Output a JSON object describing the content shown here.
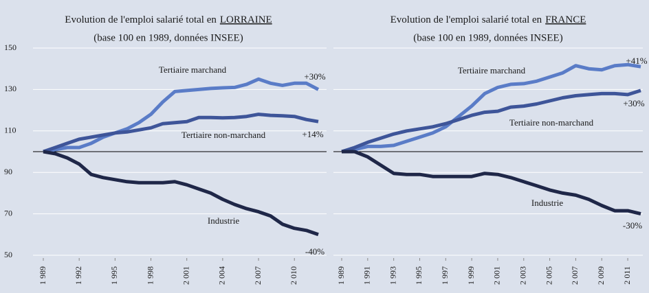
{
  "chart_data": [
    {
      "type": "line",
      "title": "Evolution de l'emploi salarié total en",
      "title_place": "LORRAINE",
      "subtitle": "(base 100 en 1989, données INSEE)",
      "x": [
        1989,
        1990,
        1991,
        1992,
        1993,
        1994,
        1995,
        1996,
        1997,
        1998,
        1999,
        2000,
        2001,
        2002,
        2003,
        2004,
        2005,
        2006,
        2007,
        2008,
        2009,
        2010,
        2011,
        2012
      ],
      "xlim": [
        1989,
        2012
      ],
      "xticks": [
        {
          "value": 1989,
          "label": "1 989"
        },
        {
          "value": 1992,
          "label": "1 992"
        },
        {
          "value": 1995,
          "label": "1 995"
        },
        {
          "value": 1998,
          "label": "1 998"
        },
        {
          "value": 2001,
          "label": "2 001"
        },
        {
          "value": 2004,
          "label": "2 004"
        },
        {
          "value": 2007,
          "label": "2 007"
        },
        {
          "value": 2010,
          "label": "2 010"
        }
      ],
      "ylim": [
        50,
        150
      ],
      "yticks": [
        50,
        70,
        90,
        110,
        130,
        150
      ],
      "grid": true,
      "baseline": 100,
      "series": [
        {
          "name": "Tertiaire marchand",
          "color": "#5a7cc7",
          "values": [
            100,
            101,
            102,
            102,
            104,
            107,
            109,
            111,
            114,
            118,
            124,
            129,
            129.5,
            130,
            130.5,
            130.8,
            131,
            132.5,
            135,
            133,
            132,
            133,
            133,
            130
          ]
        },
        {
          "name": "Tertiaire non-marchand",
          "color": "#3e5599",
          "values": [
            100,
            102,
            104,
            106,
            107,
            108,
            109,
            109.5,
            110.5,
            111.5,
            113.5,
            114,
            114.5,
            116.5,
            116.5,
            116.3,
            116.5,
            117,
            118,
            117.5,
            117.3,
            117,
            115.5,
            114.5
          ]
        },
        {
          "name": "Industrie",
          "color": "#1f2748",
          "values": [
            100,
            99,
            97,
            94,
            89,
            87.5,
            86.5,
            85.5,
            85,
            85,
            85,
            85.5,
            84,
            82,
            80,
            77,
            74.5,
            72.5,
            71,
            69,
            65,
            63,
            62,
            60
          ]
        }
      ],
      "annotations": [
        "+30%",
        "+14%",
        "-40%"
      ]
    },
    {
      "type": "line",
      "title": "Evolution de l'emploi salarié total en",
      "title_place": "FRANCE",
      "subtitle": "(base 100 en 1989, données INSEE)",
      "x": [
        1989,
        1990,
        1991,
        1992,
        1993,
        1994,
        1995,
        1996,
        1997,
        1998,
        1999,
        2000,
        2001,
        2002,
        2003,
        2004,
        2005,
        2006,
        2007,
        2008,
        2009,
        2010,
        2011,
        2012
      ],
      "xlim": [
        1989,
        2012
      ],
      "xticks": [
        {
          "value": 1989,
          "label": "1 989"
        },
        {
          "value": 1991,
          "label": "1 991"
        },
        {
          "value": 1993,
          "label": "1 993"
        },
        {
          "value": 1995,
          "label": "1 995"
        },
        {
          "value": 1997,
          "label": "1 997"
        },
        {
          "value": 1999,
          "label": "1 999"
        },
        {
          "value": 2001,
          "label": "2 001"
        },
        {
          "value": 2003,
          "label": "2 003"
        },
        {
          "value": 2005,
          "label": "2 005"
        },
        {
          "value": 2007,
          "label": "2 007"
        },
        {
          "value": 2009,
          "label": "2 009"
        },
        {
          "value": 2011,
          "label": "2 011"
        }
      ],
      "ylim": [
        50,
        150
      ],
      "grid": true,
      "baseline": 100,
      "series": [
        {
          "name": "Tertiaire marchand",
          "color": "#5a7cc7",
          "values": [
            100,
            101,
            102.5,
            102.5,
            103,
            105,
            107,
            109,
            112,
            117,
            122,
            128,
            131,
            132.5,
            132.8,
            134,
            136,
            138,
            141.5,
            140,
            139.5,
            141.5,
            142,
            141
          ]
        },
        {
          "name": "Tertiaire non-marchand",
          "color": "#3e5599",
          "values": [
            100,
            102,
            104.5,
            106.5,
            108.5,
            110,
            111,
            112,
            113.5,
            115.5,
            117.5,
            119,
            119.5,
            121.5,
            122,
            123,
            124.5,
            126,
            127,
            127.5,
            128,
            128,
            127.5,
            129.5
          ]
        },
        {
          "name": "Industrie",
          "color": "#1f2748",
          "values": [
            100,
            100,
            97.5,
            93.5,
            89.5,
            89,
            89,
            88,
            88,
            88,
            88,
            89.5,
            89,
            87.5,
            85.5,
            83.5,
            81.5,
            80,
            79,
            77,
            74,
            71.5,
            71.5,
            70
          ]
        }
      ],
      "annotations": [
        "+41%",
        "+30%",
        "-30%"
      ]
    }
  ]
}
